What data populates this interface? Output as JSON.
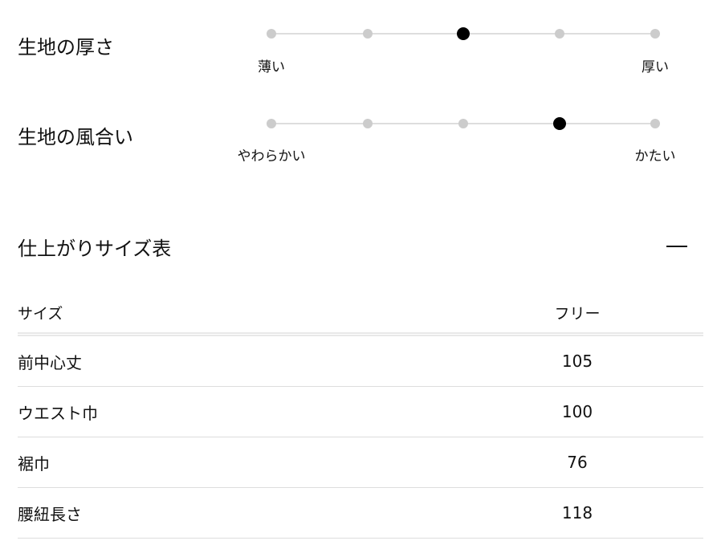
{
  "attributes": [
    {
      "label": "生地の厚さ",
      "min_label": "薄い",
      "max_label": "厚い",
      "steps": 5,
      "selected": 3
    },
    {
      "label": "生地の風合い",
      "min_label": "やわらかい",
      "max_label": "かたい",
      "steps": 5,
      "selected": 4
    }
  ],
  "size_table": {
    "title": "仕上がりサイズ表",
    "toggle_icon": "minus-icon",
    "header": [
      "サイズ",
      "フリー"
    ],
    "rows": [
      [
        "前中心丈",
        "105"
      ],
      [
        "ウエスト巾",
        "100"
      ],
      [
        "裾巾",
        "76"
      ],
      [
        "腰紐長さ",
        "118"
      ]
    ]
  }
}
